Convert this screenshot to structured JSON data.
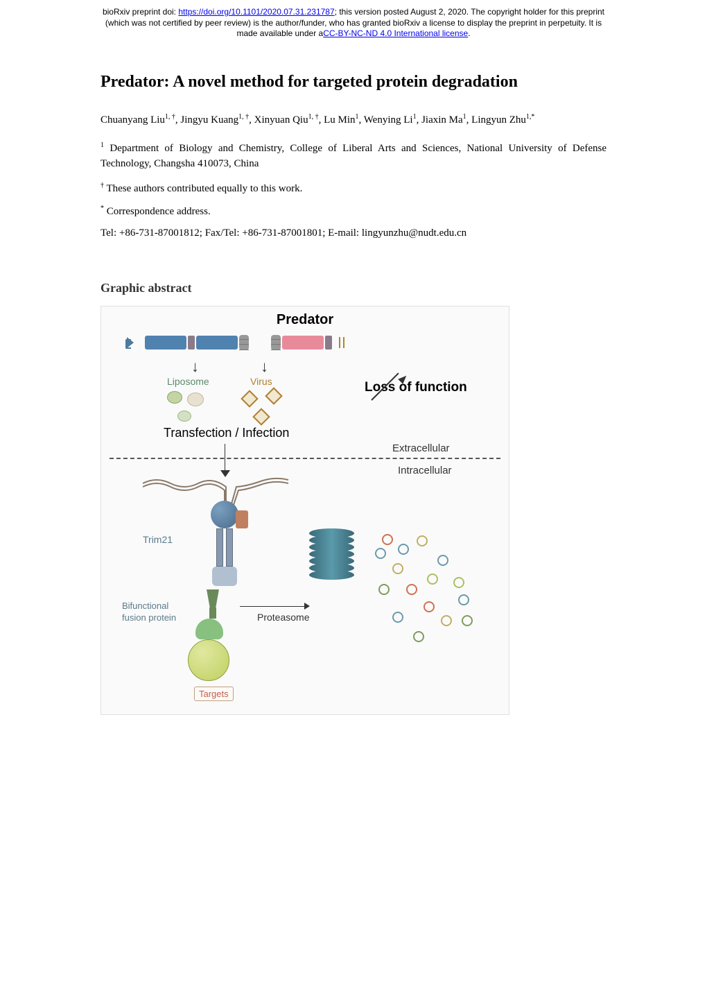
{
  "banner": {
    "prefix": "bioRxiv preprint doi: ",
    "doi_url": "https://doi.org/10.1101/2020.07.31.231787",
    "posted": "; this version posted August 2, 2020. The copyright holder for this preprint",
    "line2": "(which was not certified by peer review) is the author/funder, who has granted bioRxiv a license to display the preprint in perpetuity. It is",
    "line3_prefix": "made available under a",
    "license": "CC-BY-NC-ND 4.0 International license",
    "line3_suffix": "."
  },
  "paper": {
    "title": "Predator: A novel method for targeted protein degradation",
    "authors_html": "Chuanyang Liu<sup>1, †</sup>, Jingyu Kuang<sup>1, †</sup>, Xinyuan Qiu<sup>1, †</sup>, Lu Min<sup>1</sup>, Wenying Li<sup>1</sup>, Jiaxin Ma<sup>1</sup>, Lingyun Zhu<sup>1,*</sup>",
    "affiliation": "Department of Biology and Chemistry, College of Liberal Arts and Sciences, National University of Defense Technology, Changsha 410073, China",
    "equal_contribution": "These authors contributed equally to this work.",
    "correspondence": "Correspondence address.",
    "contact": "Tel: +86-731-87001812; Fax/Tel: +86-731-87001801; E-mail: lingyunzhu@nudt.edu.cn",
    "graphic_abstract_heading": "Graphic abstract"
  },
  "figure": {
    "title": "Predator",
    "labels": {
      "liposome": "Liposome",
      "virus": "Virus",
      "transfection": "Transfection / Infection",
      "loss_of_function": "Loss of function",
      "extracellular": "Extracellular",
      "intracellular": "Intracellular",
      "trim21": "Trim21",
      "bifunctional": "Bifunctional\nfusion protein",
      "proteasome": "Proteasome",
      "targets": "Targets"
    },
    "colors": {
      "construct_blue": "#5082b0",
      "construct_pink": "#e88a9a",
      "liposome_text": "#5a8a6a",
      "virus_text": "#b08030",
      "trim_text": "#5a7a8a",
      "target_fill": "#c0d060",
      "targets_text": "#c06050"
    }
  }
}
